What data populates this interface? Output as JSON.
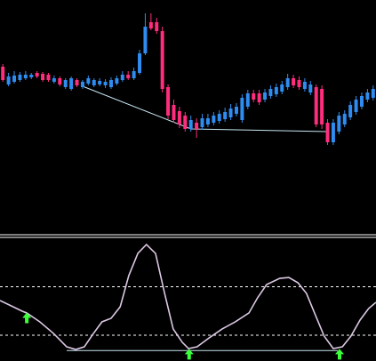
{
  "chart_data": [
    {
      "type": "candlestick",
      "open": [
        185,
        165,
        168,
        170,
        172,
        173,
        178,
        177,
        176,
        168,
        172,
        162,
        160,
        170,
        162,
        166,
        164,
        165,
        164,
        162,
        166,
        170,
        176,
        172,
        178,
        200,
        235,
        235,
        225,
        162,
        142,
        135,
        130,
        115,
        122,
        117,
        120,
        122,
        124,
        126,
        128,
        132,
        125,
        140,
        155,
        155,
        148,
        152,
        154,
        157,
        162,
        172,
        170,
        160,
        156,
        162,
        160,
        122,
        100,
        112,
        120,
        128,
        134,
        140,
        148,
        150
      ],
      "high": [
        188,
        178,
        180,
        179,
        180,
        178,
        180,
        179,
        178,
        175,
        174,
        172,
        174,
        172,
        170,
        175,
        172,
        172,
        171,
        173,
        175,
        180,
        180,
        184,
        204,
        245,
        245,
        240,
        230,
        165,
        148,
        140,
        134,
        130,
        127,
        132,
        132,
        134,
        136,
        139,
        143,
        144,
        154,
        159,
        159,
        159,
        160,
        164,
        166,
        169,
        177,
        176,
        174,
        172,
        169,
        165,
        164,
        126,
        126,
        134,
        136,
        146,
        152,
        156,
        160,
        164
      ],
      "low": [
        168,
        163,
        166,
        168,
        170,
        171,
        172,
        168,
        168,
        166,
        163,
        160,
        158,
        162,
        160,
        164,
        162,
        163,
        161,
        160,
        164,
        168,
        170,
        170,
        176,
        198,
        226,
        222,
        156,
        126,
        122,
        116,
        112,
        112,
        105,
        114,
        117,
        119,
        121,
        123,
        125,
        129,
        122,
        137,
        145,
        142,
        145,
        149,
        151,
        154,
        159,
        161,
        159,
        157,
        153,
        117,
        115,
        97,
        97,
        109,
        117,
        125,
        131,
        137,
        145,
        147
      ],
      "close": [
        170,
        174,
        175,
        176,
        176,
        176,
        174,
        170,
        170,
        172,
        165,
        170,
        172,
        164,
        168,
        172,
        170,
        169,
        168,
        170,
        172,
        176,
        172,
        180,
        200,
        230,
        228,
        225,
        160,
        130,
        125,
        120,
        115,
        125,
        115,
        127,
        127,
        130,
        132,
        134,
        138,
        140,
        150,
        155,
        148,
        145,
        156,
        160,
        162,
        165,
        172,
        164,
        162,
        168,
        165,
        120,
        120,
        100,
        122,
        130,
        132,
        142,
        148,
        152,
        156,
        160
      ],
      "xlim": [
        -0.5,
        65.5
      ],
      "ylim": [
        0,
        260
      ],
      "up_color": "#2f8cf0",
      "down_color": "#ff2d7d",
      "trendline": {
        "x": [
          14,
          33,
          57
        ],
        "values": [
          163,
          115,
          112
        ],
        "color": "#c8e6f2"
      }
    },
    {
      "type": "line",
      "x": [
        -0.5,
        1.8,
        3.4,
        4.2,
        6.5,
        8.9,
        11.2,
        12.8,
        14.3,
        15.9,
        17.4,
        19,
        20.6,
        22.1,
        23.7,
        25.2,
        26.8,
        28.4,
        29.9,
        31.5,
        32.6,
        34.1,
        36.2,
        38.5,
        40.8,
        43.2,
        44.7,
        46.3,
        48.6,
        50.2,
        51.8,
        53.3,
        54.9,
        56.4,
        58,
        59.6,
        61.1,
        62.7,
        64.2,
        65.5
      ],
      "values": [
        62.9,
        55.2,
        49.7,
        47.5,
        36.5,
        22.1,
        5.6,
        2.3,
        5.6,
        22.1,
        36.5,
        40.9,
        55.2,
        93.7,
        121.3,
        132.3,
        121.3,
        71.7,
        27.7,
        11.1,
        3.4,
        5.6,
        16.6,
        27.7,
        36.5,
        47.5,
        66.2,
        82.7,
        90.4,
        91.5,
        84.9,
        71.7,
        44.2,
        18.8,
        3.4,
        5.6,
        18.8,
        38.7,
        53,
        60.7
      ],
      "color": "#dcc8e4",
      "xlim": [
        -0.5,
        65.5
      ],
      "ylim": [
        -12,
        140
      ],
      "levels": [
        80,
        20
      ],
      "divergence": {
        "x": [
          11.2,
          58.8
        ],
        "values": [
          1,
          1
        ],
        "color": "#c8e6f2"
      },
      "signals": {
        "x": [
          4.2,
          32.7,
          59.1
        ],
        "values": [
          48,
          3,
          3
        ],
        "color": "#3cff3c"
      }
    }
  ]
}
